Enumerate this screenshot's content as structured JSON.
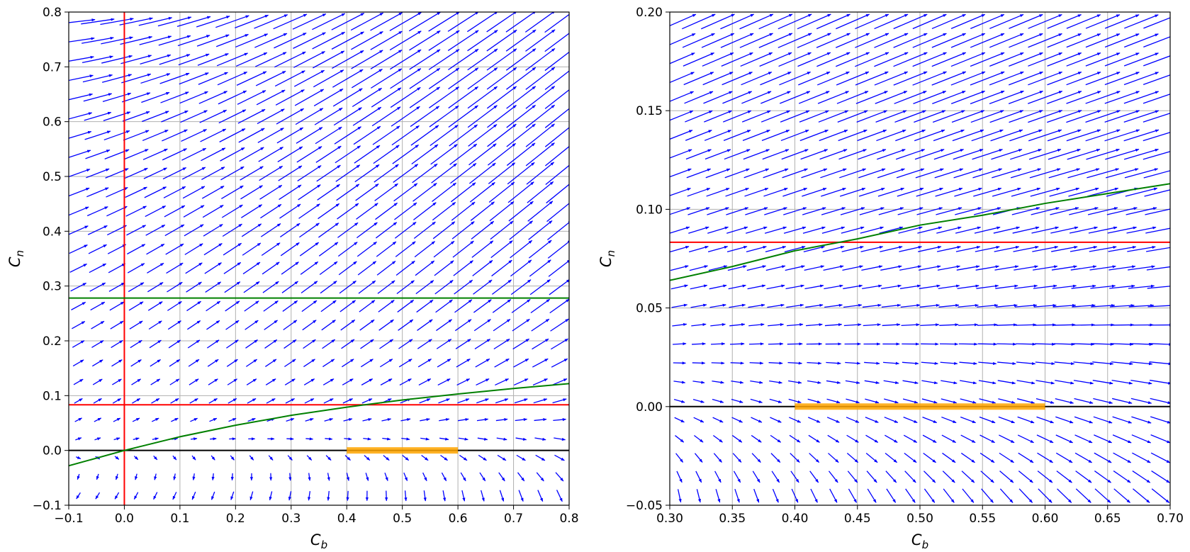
{
  "chart_data": [
    {
      "type": "quiver",
      "xlabel": "C",
      "xlabel_sub": "b",
      "ylabel": "C",
      "ylabel_sub": "n",
      "xlim": [
        -0.1,
        0.8
      ],
      "ylim": [
        -0.1,
        0.8
      ],
      "xticks": [
        "−0.1",
        "0.0",
        "0.1",
        "0.2",
        "0.3",
        "0.4",
        "0.5",
        "0.6",
        "0.7",
        "0.8"
      ],
      "yticks": [
        "−0.1",
        "0.0",
        "0.1",
        "0.2",
        "0.3",
        "0.4",
        "0.5",
        "0.6",
        "0.7",
        "0.8"
      ],
      "grid": true,
      "quiver": {
        "color": "#0000ff",
        "nx": 26,
        "ny": 26
      },
      "lines": [
        {
          "color": "#ff0000",
          "orientation": "horizontal",
          "value": 0.0833
        },
        {
          "color": "#ff0000",
          "orientation": "vertical",
          "value": 0.0
        },
        {
          "color": "#000000",
          "orientation": "horizontal",
          "value": 0.0
        },
        {
          "color": "#008000",
          "orientation": "horizontal",
          "value": 0.278
        },
        {
          "color": "#008000",
          "orientation": "curve",
          "x": [
            -0.1,
            0.0,
            0.1,
            0.2,
            0.3,
            0.4,
            0.5,
            0.6,
            0.7,
            0.8
          ],
          "y": [
            -0.028,
            0.0,
            0.025,
            0.046,
            0.064,
            0.079,
            0.092,
            0.103,
            0.113,
            0.122
          ]
        }
      ],
      "segments": [
        {
          "color": "#ffa500",
          "x": [
            0.4,
            0.6
          ],
          "y": [
            0.0,
            0.0
          ]
        }
      ]
    },
    {
      "type": "quiver",
      "xlabel": "C",
      "xlabel_sub": "b",
      "ylabel": "C",
      "ylabel_sub": "n",
      "xlim": [
        0.3,
        0.7
      ],
      "ylim": [
        -0.05,
        0.2
      ],
      "xticks": [
        "0.30",
        "0.35",
        "0.40",
        "0.45",
        "0.50",
        "0.55",
        "0.60",
        "0.65",
        "0.70"
      ],
      "yticks": [
        "−0.05",
        "0.00",
        "0.05",
        "0.10",
        "0.15",
        "0.20"
      ],
      "grid": true,
      "quiver": {
        "color": "#0000ff",
        "nx": 26,
        "ny": 26
      },
      "lines": [
        {
          "color": "#ff0000",
          "orientation": "horizontal",
          "value": 0.0833
        },
        {
          "color": "#000000",
          "orientation": "horizontal",
          "value": 0.0
        },
        {
          "color": "#008000",
          "orientation": "curve",
          "x": [
            0.3,
            0.35,
            0.4,
            0.45,
            0.5,
            0.55,
            0.6,
            0.65,
            0.7
          ],
          "y": [
            0.064,
            0.071,
            0.079,
            0.085,
            0.092,
            0.097,
            0.103,
            0.108,
            0.113
          ]
        }
      ],
      "segments": [
        {
          "color": "#ffa500",
          "x": [
            0.4,
            0.6
          ],
          "y": [
            0.0,
            0.0
          ]
        }
      ]
    }
  ]
}
